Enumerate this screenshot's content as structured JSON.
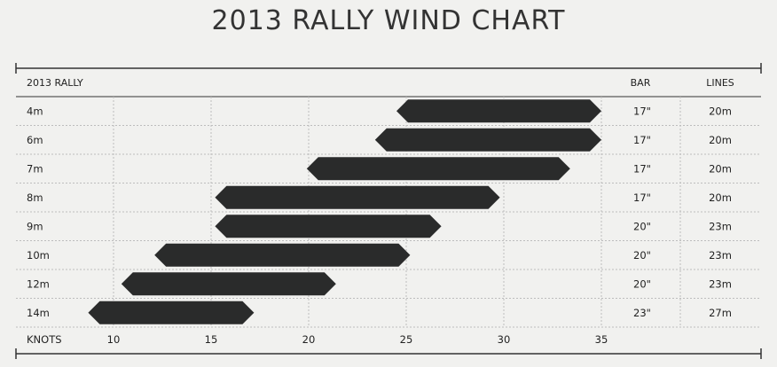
{
  "title": "2013 RALLY WIND CHART",
  "header": {
    "left": "2013 RALLY",
    "bar": "BAR",
    "lines": "LINES"
  },
  "footer": {
    "label": "KNOTS"
  },
  "colors": {
    "bar": "#2a2b2b",
    "grid": "#bdbdbd",
    "rule": "#333333",
    "background": "#f1f1ef"
  },
  "chart_data": {
    "type": "bar",
    "orientation": "horizontal-range",
    "title": "2013 RALLY WIND CHART",
    "xlabel": "KNOTS",
    "xlim": [
      5,
      35
    ],
    "xticks": [
      10,
      15,
      20,
      25,
      30,
      35
    ],
    "rows": [
      {
        "size": "4m",
        "start": 24.5,
        "end": 35,
        "bar": "17\"",
        "lines": "20m"
      },
      {
        "size": "6m",
        "start": 23.4,
        "end": 35,
        "bar": "17\"",
        "lines": "20m"
      },
      {
        "size": "7m",
        "start": 19.9,
        "end": 33.4,
        "bar": "17\"",
        "lines": "20m"
      },
      {
        "size": "8m",
        "start": 15.2,
        "end": 29.8,
        "bar": "17\"",
        "lines": "20m"
      },
      {
        "size": "9m",
        "start": 15.2,
        "end": 26.8,
        "bar": "20\"",
        "lines": "23m"
      },
      {
        "size": "10m",
        "start": 12.1,
        "end": 25.2,
        "bar": "20\"",
        "lines": "23m"
      },
      {
        "size": "12m",
        "start": 10.4,
        "end": 21.4,
        "bar": "20\"",
        "lines": "23m"
      },
      {
        "size": "14m",
        "start": 8.7,
        "end": 17.2,
        "bar": "23\"",
        "lines": "27m"
      }
    ]
  }
}
